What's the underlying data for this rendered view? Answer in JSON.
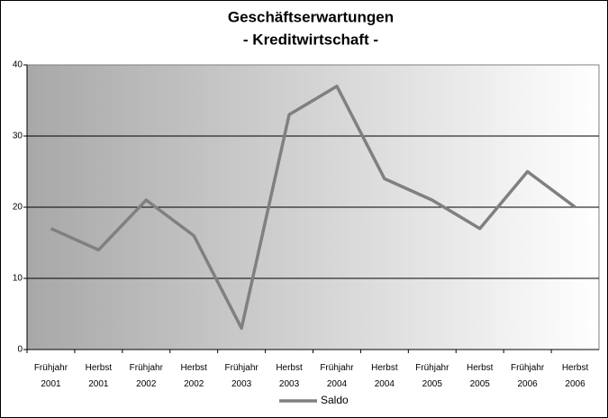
{
  "chart_data": {
    "type": "line",
    "title": "Geschäftserwartungen",
    "subtitle": "- Kreditwirtschaft -",
    "categories": [
      "Frühjahr 2001",
      "Herbst 2001",
      "Frühjahr 2002",
      "Herbst 2002",
      "Frühjahr 2003",
      "Herbst 2003",
      "Frühjahr 2004",
      "Herbst 2004",
      "Frühjahr 2005",
      "Herbst 2005",
      "Frühjahr 2006",
      "Herbst 2006"
    ],
    "series": [
      {
        "name": "Saldo",
        "color": "#808080",
        "values": [
          17,
          14,
          21,
          16,
          3,
          33,
          37,
          24,
          21,
          17,
          25,
          20
        ]
      }
    ],
    "ylim": [
      0,
      40
    ],
    "yticks": [
      0,
      10,
      20,
      30,
      40
    ],
    "grid": true,
    "legend": "bottom"
  }
}
